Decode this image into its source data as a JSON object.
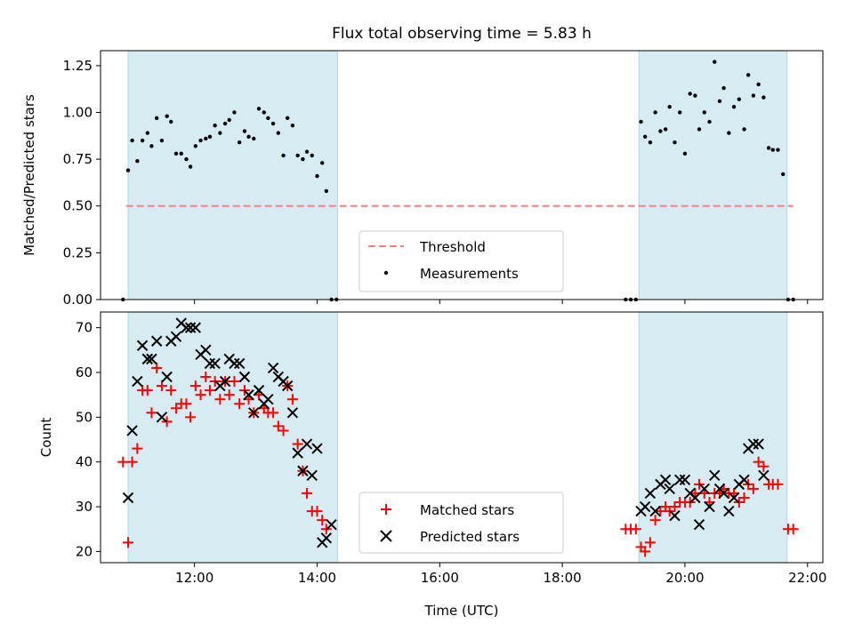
{
  "title": "Flux total observing time = 5.83 h",
  "colors": {
    "shade": "#add8e6",
    "threshold": "#ff7f7f",
    "measurement": "#000000",
    "matched": "#ff0000",
    "predicted": "#000000"
  },
  "chart_data": [
    {
      "type": "scatter",
      "ylabel": "Matched/Predicted stars",
      "ylim": [
        0,
        1.33
      ],
      "yticks": [
        0,
        0.25,
        0.5,
        0.75,
        1.0,
        1.25
      ],
      "ytick_labels": [
        "0.00",
        "0.25",
        "0.50",
        "0.75",
        "1.00",
        "1.25"
      ],
      "xlim": [
        "10:28",
        "22:15"
      ],
      "xtick_labels": [
        "12:00",
        "14:00",
        "16:00",
        "18:00",
        "20:00",
        "22:00"
      ],
      "shaded_intervals": [
        [
          "10:55",
          "14:20"
        ],
        [
          "19:15",
          "21:40"
        ]
      ],
      "threshold": {
        "name": "Threshold",
        "y": 0.5,
        "x_range": [
          "10:53",
          "21:46"
        ]
      },
      "legend": {
        "position": "lower center",
        "entries": [
          "Threshold",
          "Measurements"
        ]
      },
      "series": [
        {
          "name": "Measurements",
          "x": [
            "10:50",
            "10:55",
            "10:59",
            "11:04",
            "11:09",
            "11:14",
            "11:18",
            "11:23",
            "11:28",
            "11:33",
            "11:37",
            "11:42",
            "11:47",
            "11:52",
            "11:56",
            "12:01",
            "12:06",
            "12:11",
            "12:15",
            "12:20",
            "12:25",
            "12:30",
            "12:34",
            "12:39",
            "12:44",
            "12:49",
            "12:53",
            "12:58",
            "13:03",
            "13:08",
            "13:12",
            "13:17",
            "13:22",
            "13:27",
            "13:31",
            "13:36",
            "13:41",
            "13:46",
            "13:50",
            "13:55",
            "14:00",
            "14:05",
            "14:09",
            "14:14",
            "14:19",
            "19:02",
            "19:07",
            "19:12",
            "19:17",
            "19:21",
            "19:26",
            "19:31",
            "19:36",
            "19:41",
            "19:45",
            "19:50",
            "19:55",
            "20:00",
            "20:05",
            "20:10",
            "20:14",
            "20:19",
            "20:24",
            "20:29",
            "20:34",
            "20:38",
            "20:43",
            "20:48",
            "20:53",
            "20:58",
            "21:02",
            "21:07",
            "21:12",
            "21:17",
            "21:22",
            "21:26",
            "21:31",
            "21:36",
            "21:41",
            "21:46"
          ],
          "y": [
            0.0,
            0.69,
            0.85,
            0.74,
            0.85,
            0.89,
            0.82,
            0.97,
            0.85,
            0.98,
            0.95,
            0.78,
            0.78,
            0.75,
            0.71,
            0.82,
            0.85,
            0.86,
            0.87,
            0.93,
            0.89,
            0.94,
            0.96,
            1.0,
            0.84,
            0.9,
            0.87,
            0.86,
            1.02,
            1.0,
            0.97,
            0.94,
            0.89,
            0.77,
            0.97,
            0.93,
            0.77,
            0.75,
            0.79,
            0.77,
            0.66,
            0.73,
            0.58,
            0.0,
            0.0,
            0.0,
            0.0,
            0.0,
            0.95,
            0.87,
            0.84,
            1.0,
            0.9,
            0.91,
            1.03,
            0.84,
            1.0,
            0.78,
            1.1,
            1.09,
            0.91,
            1.0,
            0.95,
            1.27,
            1.06,
            1.13,
            0.89,
            1.03,
            1.07,
            0.91,
            1.2,
            1.09,
            1.15,
            1.08,
            0.81,
            0.8,
            0.8,
            0.67,
            0.0,
            0.0
          ]
        }
      ]
    },
    {
      "type": "scatter",
      "xlabel": "Time (UTC)",
      "ylabel": "Count",
      "ylim": [
        17.5,
        73.5
      ],
      "yticks": [
        20,
        30,
        40,
        50,
        60,
        70
      ],
      "ytick_labels": [
        "20",
        "30",
        "40",
        "50",
        "60",
        "70"
      ],
      "xlim": [
        "10:28",
        "22:15"
      ],
      "xtick_labels": [
        "12:00",
        "14:00",
        "16:00",
        "18:00",
        "20:00",
        "22:00"
      ],
      "shaded_intervals": [
        [
          "10:55",
          "14:20"
        ],
        [
          "19:15",
          "21:40"
        ]
      ],
      "legend": {
        "position": "lower center",
        "entries": [
          "Matched stars",
          "Predicted stars"
        ]
      },
      "series": [
        {
          "name": "Matched stars",
          "marker": "plus",
          "x": [
            "10:50",
            "10:55",
            "10:59",
            "11:04",
            "11:09",
            "11:14",
            "11:18",
            "11:23",
            "11:28",
            "11:33",
            "11:37",
            "11:42",
            "11:47",
            "11:52",
            "11:56",
            "12:01",
            "12:06",
            "12:11",
            "12:15",
            "12:20",
            "12:25",
            "12:30",
            "12:34",
            "12:39",
            "12:44",
            "12:49",
            "12:53",
            "12:58",
            "13:03",
            "13:08",
            "13:12",
            "13:17",
            "13:22",
            "13:27",
            "13:31",
            "13:36",
            "13:41",
            "13:46",
            "13:50",
            "13:55",
            "14:00",
            "14:05",
            "14:09",
            "14:14",
            "14:19",
            "19:02",
            "19:07",
            "19:12",
            "19:17",
            "19:21",
            "19:26",
            "19:31",
            "19:36",
            "19:41",
            "19:45",
            "19:50",
            "19:55",
            "20:00",
            "20:05",
            "20:10",
            "20:14",
            "20:19",
            "20:24",
            "20:29",
            "20:34",
            "20:38",
            "20:43",
            "20:48",
            "20:53",
            "20:58",
            "21:02",
            "21:07",
            "21:12",
            "21:17",
            "21:22",
            "21:26",
            "21:31",
            "21:36",
            "21:41",
            "21:46"
          ],
          "y": [
            40,
            22,
            40,
            43,
            56,
            56,
            51,
            61,
            57,
            49,
            56,
            52,
            53,
            53,
            50,
            57,
            55,
            59,
            56,
            58,
            54,
            58,
            55,
            58,
            53,
            56,
            54,
            51,
            55,
            52,
            51,
            51,
            48,
            47,
            57,
            54,
            44,
            38,
            33,
            29,
            29,
            27,
            25,
            null,
            null,
            25,
            25,
            25,
            21,
            20,
            22,
            27,
            29,
            30,
            29,
            30,
            31,
            31,
            31,
            33,
            35,
            33,
            31,
            33,
            33,
            34,
            33,
            33,
            31,
            32,
            35,
            34,
            40,
            39,
            35,
            35,
            35,
            null,
            25,
            25
          ]
        },
        {
          "name": "Predicted stars",
          "marker": "x",
          "x": [
            "10:55",
            "10:59",
            "11:04",
            "11:09",
            "11:14",
            "11:18",
            "11:23",
            "11:28",
            "11:33",
            "11:37",
            "11:42",
            "11:47",
            "11:52",
            "11:56",
            "12:01",
            "12:06",
            "12:11",
            "12:15",
            "12:20",
            "12:25",
            "12:30",
            "12:34",
            "12:39",
            "12:44",
            "12:49",
            "12:53",
            "12:58",
            "13:03",
            "13:08",
            "13:12",
            "13:17",
            "13:22",
            "13:27",
            "13:31",
            "13:36",
            "13:41",
            "13:46",
            "13:50",
            "13:55",
            "14:00",
            "14:05",
            "14:09",
            "14:14",
            "19:17",
            "19:21",
            "19:26",
            "19:31",
            "19:36",
            "19:41",
            "19:45",
            "19:50",
            "19:55",
            "20:00",
            "20:05",
            "20:10",
            "20:14",
            "20:19",
            "20:24",
            "20:29",
            "20:34",
            "20:38",
            "20:43",
            "20:48",
            "20:53",
            "20:58",
            "21:02",
            "21:07",
            "21:12",
            "21:17",
            "21:22",
            "21:26",
            "21:31",
            "21:36",
            "21:41"
          ],
          "y": [
            32,
            47,
            58,
            66,
            63,
            63,
            67,
            50,
            59,
            67,
            68,
            71,
            70,
            70,
            70,
            64,
            65,
            62,
            62,
            57,
            58,
            63,
            62,
            62,
            59,
            55,
            51,
            56,
            53,
            54,
            61,
            59,
            58,
            57,
            51,
            42,
            38,
            44,
            37,
            43,
            22,
            23,
            26,
            29,
            30,
            33,
            29,
            35,
            36,
            34,
            28,
            36,
            36,
            33,
            32,
            26,
            34,
            30,
            37,
            34,
            33,
            29,
            32,
            35,
            36,
            43,
            44,
            44,
            37,
            null,
            null,
            null,
            null,
            null
          ],
          "note": ""
        }
      ]
    }
  ]
}
